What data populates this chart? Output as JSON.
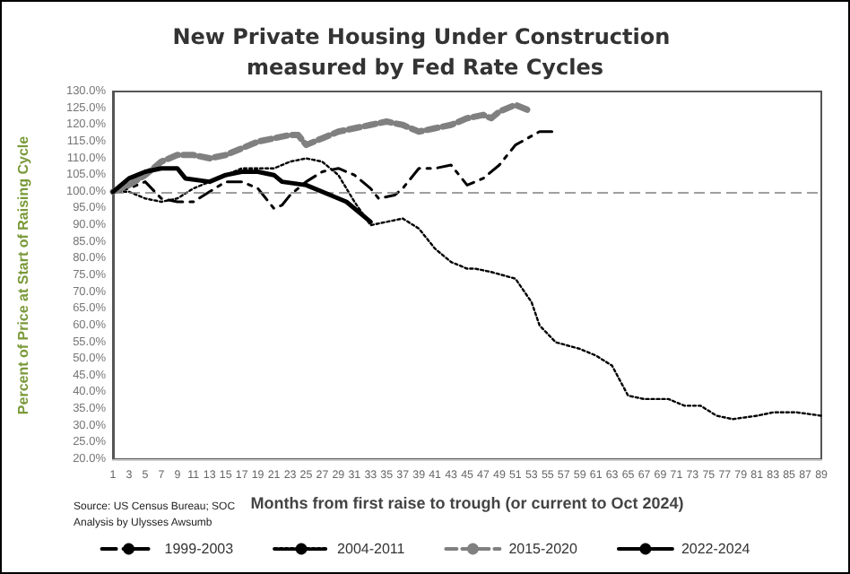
{
  "chart_data": {
    "type": "line",
    "title": "New Private Housing Under Construction measured by Fed Rate Cycles",
    "xlabel": "Months from first raise to trough (or current to Oct 2024)",
    "ylabel": "Percent of Price at Start of Raising Cycle",
    "xlim": [
      1,
      89
    ],
    "xticks": [
      1,
      3,
      5,
      7,
      9,
      11,
      13,
      15,
      17,
      19,
      21,
      23,
      25,
      27,
      29,
      31,
      33,
      35,
      37,
      39,
      41,
      43,
      45,
      47,
      49,
      51,
      53,
      55,
      57,
      59,
      61,
      63,
      65,
      67,
      69,
      71,
      73,
      75,
      77,
      79,
      81,
      83,
      85,
      87,
      89
    ],
    "ylim": [
      20,
      130
    ],
    "yticks": [
      {
        "value": 20,
        "label": "20.0%"
      },
      {
        "value": 25,
        "label": "25.0%"
      },
      {
        "value": 30,
        "label": "30.0%"
      },
      {
        "value": 35,
        "label": "35.0%"
      },
      {
        "value": 40,
        "label": "40.0%"
      },
      {
        "value": 45,
        "label": "45.0%"
      },
      {
        "value": 50,
        "label": "50.0%"
      },
      {
        "value": 55,
        "label": "55.0%"
      },
      {
        "value": 60,
        "label": "60.0%"
      },
      {
        "value": 65,
        "label": "65.0%"
      },
      {
        "value": 70,
        "label": "70.0%"
      },
      {
        "value": 75,
        "label": "75.0%"
      },
      {
        "value": 80,
        "label": "80.0%"
      },
      {
        "value": 85,
        "label": "85.0%"
      },
      {
        "value": 90,
        "label": "90.0%"
      },
      {
        "value": 95,
        "label": "95.0%"
      },
      {
        "value": 100,
        "label": "100.0%"
      },
      {
        "value": 105,
        "label": "105.0%"
      },
      {
        "value": 110,
        "label": "110.0%"
      },
      {
        "value": 115,
        "label": "115.0%"
      },
      {
        "value": 120,
        "label": "120.0%"
      },
      {
        "value": 125,
        "label": "125.0%"
      },
      {
        "value": 130,
        "label": "130.0%"
      }
    ],
    "grid": false,
    "legend": "bottom",
    "marker": "none",
    "ref_lines": [
      {
        "axis": "y",
        "value": 100,
        "label": null,
        "color": "#808080",
        "line_style": "dashed"
      }
    ],
    "annotations": [
      "Source: US Census Bureau; SOC",
      "Analysis by Ulysses Awsumb"
    ],
    "series": [
      {
        "name": "1999-2003",
        "color": "#000000",
        "line_style": "dashdot",
        "x": [
          1,
          3,
          5,
          7,
          9,
          11,
          13,
          15,
          17,
          19,
          20,
          21,
          22,
          23,
          25,
          27,
          29,
          31,
          33,
          34,
          36,
          37,
          39,
          41,
          43,
          45,
          47,
          49,
          51,
          54,
          56
        ],
        "values": [
          100,
          101,
          103,
          98,
          97,
          97,
          100,
          103,
          103,
          101,
          98,
          95,
          96,
          99,
          103,
          106,
          107,
          105,
          101,
          98,
          99,
          101,
          107,
          107,
          108,
          102,
          104,
          108,
          114,
          118,
          118
        ]
      },
      {
        "name": "2004-2011",
        "color": "#000000",
        "line_style": "dotted",
        "x": [
          1,
          3,
          5,
          7,
          9,
          11,
          13,
          15,
          17,
          19,
          21,
          23,
          25,
          27,
          29,
          31,
          33,
          35,
          37,
          39,
          41,
          43,
          45,
          46,
          48,
          51,
          53,
          54,
          56,
          59,
          61,
          63,
          65,
          67,
          70,
          72,
          74,
          76,
          78,
          81,
          83,
          86,
          89
        ],
        "values": [
          100,
          100,
          98,
          97,
          98,
          101,
          103,
          105,
          107,
          107,
          107,
          109,
          110,
          109,
          105,
          97,
          90,
          91,
          92,
          89,
          83,
          79,
          77,
          77,
          76,
          74,
          67,
          60,
          55,
          53,
          51,
          48,
          39,
          38,
          38,
          36,
          36,
          33,
          32,
          33,
          34,
          34,
          33
        ]
      },
      {
        "name": "2015-2020",
        "color": "#808080",
        "line_style": "dashed",
        "x": [
          1,
          3,
          5,
          7,
          9,
          11,
          13,
          15,
          17,
          19,
          21,
          23,
          24,
          25,
          27,
          29,
          31,
          33,
          35,
          37,
          39,
          41,
          43,
          45,
          47,
          48,
          49,
          51,
          53
        ],
        "values": [
          100,
          102,
          105,
          109,
          111,
          111,
          110,
          111,
          113,
          115,
          116,
          117,
          117,
          114,
          116,
          118,
          119,
          120,
          121,
          120,
          118,
          119,
          120,
          122,
          123,
          122,
          124,
          126,
          124
        ]
      },
      {
        "name": "2022-2024",
        "color": "#000000",
        "line_style": "solid",
        "x": [
          1,
          3,
          5,
          7,
          9,
          10,
          13,
          15,
          17,
          19,
          21,
          22,
          25,
          28,
          30,
          32,
          33
        ],
        "values": [
          100,
          104,
          106,
          107,
          107,
          104,
          103,
          105,
          106,
          106,
          105,
          103,
          102,
          99,
          97,
          93,
          91
        ]
      }
    ]
  }
}
